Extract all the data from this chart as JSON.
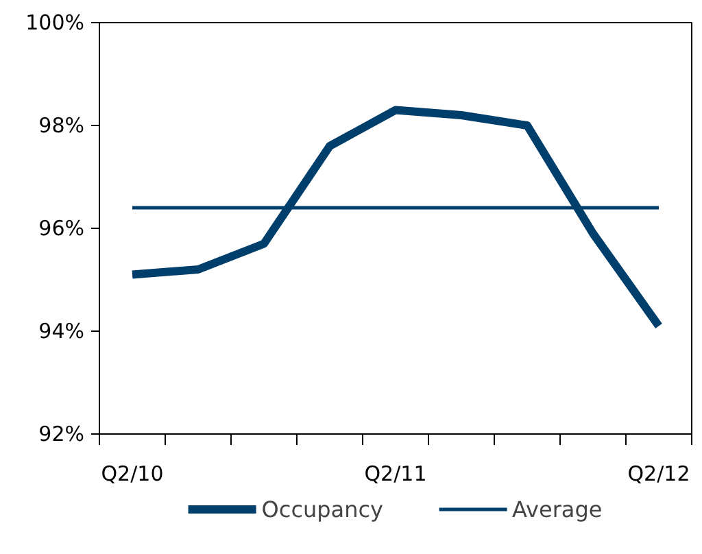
{
  "chart_data": {
    "type": "line",
    "categories": [
      "Q2/10",
      null,
      null,
      null,
      "Q2/11",
      null,
      null,
      null,
      "Q2/12"
    ],
    "series": [
      {
        "name": "Occupancy",
        "color": "#003f6b",
        "values": [
          95.1,
          95.2,
          95.7,
          97.6,
          98.3,
          98.2,
          98.0,
          95.9,
          94.1
        ]
      },
      {
        "name": "Average",
        "color": "#003f6b",
        "values": [
          96.4,
          96.4,
          96.4,
          96.4,
          96.4,
          96.4,
          96.4,
          96.4,
          96.4
        ]
      }
    ],
    "ylim": [
      92,
      100
    ],
    "yticks": [
      {
        "value": 92,
        "label": "92%"
      },
      {
        "value": 94,
        "label": "94%"
      },
      {
        "value": 96,
        "label": "96%"
      },
      {
        "value": 98,
        "label": "98%"
      },
      {
        "value": 100,
        "label": "100%"
      }
    ],
    "grid": false,
    "legend": "bottom",
    "marker": "none",
    "line_style": "solid"
  }
}
